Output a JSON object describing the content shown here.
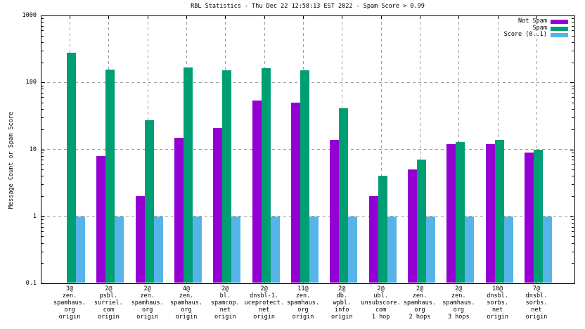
{
  "chart_data": {
    "type": "bar",
    "title": "RBL Statistics - Thu Dec 22 12:58:13 EST 2022 - Spam Score > 0.99",
    "ylabel": "Message Count or Spam Score",
    "yscale": "log",
    "ylim": [
      0.1,
      1000
    ],
    "grid": true,
    "legend_position": "top-right-inside",
    "yticks": [
      {
        "label": "1000",
        "value": 1000
      },
      {
        "label": "100",
        "value": 100
      },
      {
        "label": "10",
        "value": 10
      },
      {
        "label": "1",
        "value": 1
      },
      {
        "label": "0.1",
        "value": 0.1
      }
    ],
    "categories": [
      [
        "3@",
        "zen.",
        "spamhaus.",
        "org",
        "origin"
      ],
      [
        "2@",
        "psbl.",
        "surriel.",
        "com",
        "origin"
      ],
      [
        "2@",
        "zen.",
        "spamhaus.",
        "org",
        "origin"
      ],
      [
        "4@",
        "zen.",
        "spamhaus.",
        "org",
        "origin"
      ],
      [
        "2@",
        "bl.",
        "spamcop.",
        "net",
        "origin"
      ],
      [
        "2@",
        "dnsbl-1.",
        "uceprotect.",
        "net",
        "origin"
      ],
      [
        "11@",
        "zen.",
        "spamhaus.",
        "org",
        "origin"
      ],
      [
        "2@",
        "db.",
        "wpbl.",
        "info",
        "origin"
      ],
      [
        "2@",
        "ubl.",
        "unsubscore.",
        "com",
        "1 hop"
      ],
      [
        "2@",
        "zen.",
        "spamhaus.",
        "org",
        "2 hops"
      ],
      [
        "2@",
        "zen.",
        "spamhaus.",
        "org",
        "3 hops"
      ],
      [
        "10@",
        "dnsbl.",
        "sorbs.",
        "net",
        "origin"
      ],
      [
        "7@",
        "dnsbl.",
        "sorbs.",
        "net",
        "origin"
      ]
    ],
    "series": [
      {
        "name": "Not Spam",
        "color": "#9400d3",
        "values": [
          null,
          8,
          2,
          15,
          21,
          54,
          50,
          14,
          2,
          5,
          12,
          12,
          9
        ]
      },
      {
        "name": "Spam",
        "color": "#009e73",
        "values": [
          280,
          155,
          27,
          168,
          152,
          165,
          150,
          41,
          4,
          7,
          13,
          14,
          10
        ]
      },
      {
        "name": "Score (0..1)",
        "color": "#56b4e9",
        "values": [
          1,
          1,
          1,
          1,
          1,
          1,
          1,
          1,
          1,
          1,
          1,
          1,
          1
        ]
      }
    ]
  }
}
